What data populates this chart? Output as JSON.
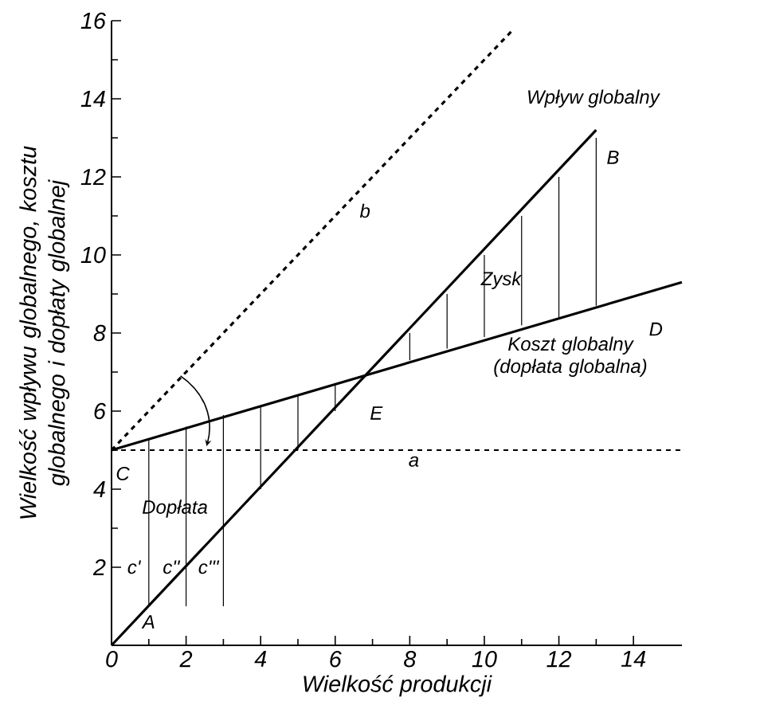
{
  "chart_data": {
    "type": "line",
    "xlabel": "Wielkość produkcji",
    "ylabel": "Wielkość wpływu globalnego, kosztu globalnego i dopłaty globalnej",
    "xlim": [
      0,
      15.3
    ],
    "ylim": [
      0,
      16
    ],
    "xticks": [
      0,
      2,
      4,
      6,
      8,
      10,
      12,
      14
    ],
    "yticks": [
      2,
      4,
      6,
      8,
      10,
      12,
      14,
      16
    ],
    "marker": "none",
    "series": [
      {
        "name": "Wpływ globalny",
        "color": "#000000",
        "line_style": "solid",
        "x": [
          0,
          13
        ],
        "values": [
          0,
          13.2
        ]
      },
      {
        "name": "Koszt globalny (dopłata globalna)",
        "color": "#000000",
        "line_style": "solid",
        "x": [
          0,
          15.3
        ],
        "values": [
          5,
          9.3
        ]
      },
      {
        "name": "b",
        "color": "#000000",
        "line_style": "dashed",
        "x": [
          0,
          10.8
        ],
        "values": [
          5,
          15.8
        ]
      },
      {
        "color": "#000000",
        "line_style": "solid",
        "x": [
          1,
          1,
          null,
          2,
          2,
          null,
          3,
          3,
          null,
          4,
          4,
          null,
          5,
          5,
          null,
          6,
          6,
          null,
          8,
          8,
          null,
          9,
          9,
          null,
          10,
          10,
          null,
          11,
          11,
          null,
          12,
          12,
          null,
          13,
          13
        ],
        "values": [
          1,
          5.3,
          null,
          1,
          5.6,
          null,
          1,
          5.9,
          null,
          4,
          6.1,
          null,
          5,
          6.4,
          null,
          6,
          6.7,
          null,
          8,
          7.3,
          null,
          9,
          7.6,
          null,
          10,
          7.9,
          null,
          11,
          8.2,
          null,
          12,
          8.4,
          null,
          13,
          8.7
        ]
      }
    ],
    "ref_lines": [
      {
        "axis": "y",
        "value": 5,
        "label": "a",
        "line_style": "dashed",
        "color": "#000000"
      }
    ],
    "annotations": [
      "A",
      "B",
      "C",
      "D",
      "E",
      "Zysk",
      "Dopłata",
      "c'",
      "c''",
      "c'''"
    ]
  }
}
